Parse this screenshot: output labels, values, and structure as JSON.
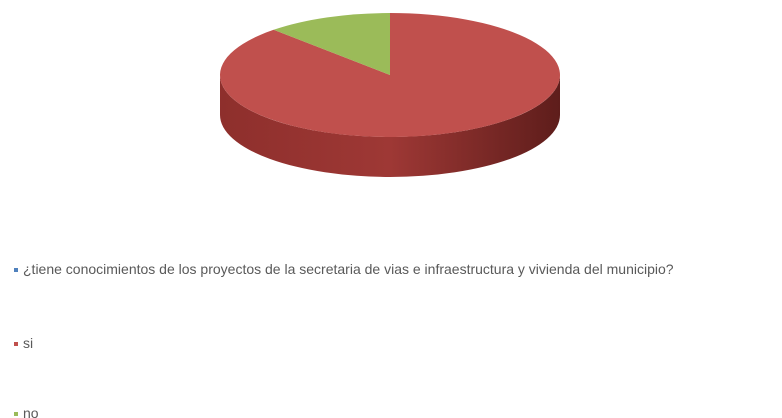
{
  "chart_data": {
    "type": "pie",
    "series_name": "¿tiene conocimientos de los proyectos de la secretaria de vias e infraestructura y vivienda del municipio?",
    "series_color": "#4f81bd",
    "categories": [
      "si",
      "no"
    ],
    "values": [
      88,
      12
    ],
    "colors": [
      "#c0504d",
      "#9bbb59"
    ],
    "legend": "bottom"
  }
}
